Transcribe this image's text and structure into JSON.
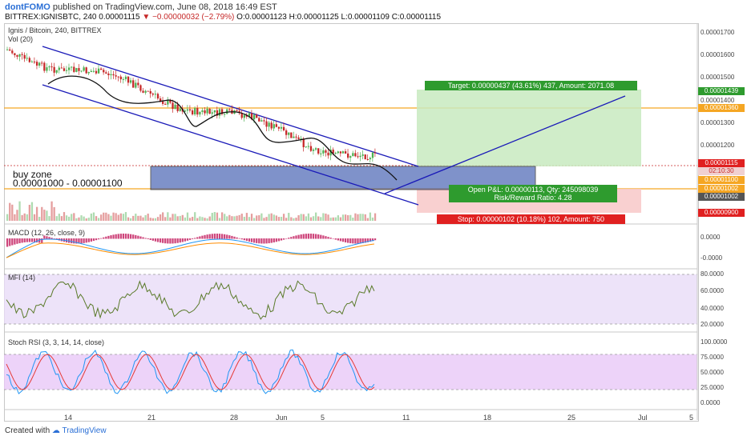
{
  "header": {
    "user": "dontFOMO",
    "published": "published on TradingView.com, June 08, 2018 16:49 EST",
    "symbol": "BITTREX:IGNISBTC, 240",
    "price": "0.00001115",
    "change": "▼ −0.00000032 (−2.79%)",
    "o": "O:0.00001123",
    "h": "H:0.00001125",
    "l": "L:0.00001109",
    "c": "C:0.00001115"
  },
  "main": {
    "title": "Ignis / Bitcoin, 240, BITTREX",
    "vol": "Vol (20)",
    "buy_zone_title": "buy zone",
    "buy_zone_range": "0.00001000 - 0.00001100",
    "target": "Target: 0.00000437 (43.61%) 437, Amount: 2071.08",
    "open_pl": "Open P&L: 0.00000113, Qty: 245098039",
    "rr": "Risk/Reward Ratio: 4.28",
    "stop": "Stop: 0.00000102 (10.18%) 102, Amount: 750"
  },
  "price_axis": [
    "0.00001700",
    "0.00001600",
    "0.00001500",
    "0.00001400",
    "0.00001300",
    "0.00001200"
  ],
  "tags": {
    "t1439": "0.00001439",
    "t1360": "0.00001360",
    "t1115": "0.00001115",
    "timer": "02:10:30",
    "t1100": "0.00001100",
    "t1002a": "0.00001002",
    "t1002b": "0.00001002",
    "t900": "0.00000900"
  },
  "macd": {
    "title": "MACD (12, 26, close, 9)",
    "ticks": [
      "0.0000",
      "-0.0000"
    ]
  },
  "mfi": {
    "title": "MFI (14)",
    "ticks": [
      "80.0000",
      "60.0000",
      "40.0000",
      "20.0000"
    ]
  },
  "stoch": {
    "title": "Stoch RSI (3, 3, 14, 14, close)",
    "ticks": [
      "100.0000",
      "75.0000",
      "50.0000",
      "25.0000",
      "0.0000"
    ]
  },
  "x_axis": [
    "14",
    "21",
    "28",
    "Jun",
    "5",
    "11",
    "18",
    "25",
    "Jul",
    "5"
  ],
  "footer": {
    "created": "Created with",
    "brand": "TradingView"
  },
  "colors": {
    "up": "#4caf50",
    "down": "#c62828",
    "channel": "#1a1ab8",
    "orange": "#f5a623",
    "buyzone": "#4a64b4",
    "green": "#2e9b2e",
    "red": "#e02020"
  }
}
